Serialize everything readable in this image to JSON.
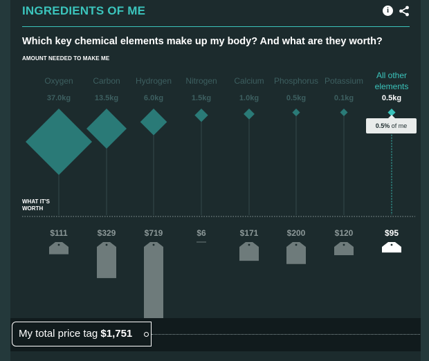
{
  "header": {
    "title": "INGREDIENTS OF ME",
    "info_glyph": "i",
    "subtitle": "Which key chemical elements make up my body? And what are they worth?",
    "section_amount": "AMOUNT NEEDED TO MAKE ME",
    "section_worth_line1": "WHAT IT'S",
    "section_worth_line2": "WORTH"
  },
  "colors": {
    "accent": "#3bc4bc",
    "diamond": "#2a7a77",
    "muted_text": "#3d5f60",
    "tag": "#6e7b7b",
    "panel": "#1c2b2d"
  },
  "chart_data": {
    "type": "diamond-and-tag",
    "categories": [
      "Oxygen",
      "Carbon",
      "Hydrogen",
      "Nitrogen",
      "Calcium",
      "Phosphorus",
      "Potassium",
      "All other elements"
    ],
    "weight_kg": [
      37.0,
      13.5,
      6.0,
      1.5,
      1.0,
      0.5,
      0.1,
      0.5
    ],
    "weight_labels": [
      "37.0kg",
      "13.5kg",
      "6.0kg",
      "1.5kg",
      "1.0kg",
      "0.5kg",
      "0.1kg",
      "0.5kg"
    ],
    "price_usd": [
      111,
      329,
      719,
      6,
      171,
      200,
      120,
      95
    ],
    "price_labels": [
      "$111",
      "$329",
      "$719",
      "$6",
      "$171",
      "$200",
      "$120",
      "$95"
    ],
    "highlighted": "All other elements"
  },
  "tooltip": {
    "value": "0.5%",
    "suffix": " of me"
  },
  "total": {
    "label": "My total price tag",
    "amount": "$1,751"
  },
  "icons": {
    "info": "info-icon",
    "share": "share-icon"
  }
}
